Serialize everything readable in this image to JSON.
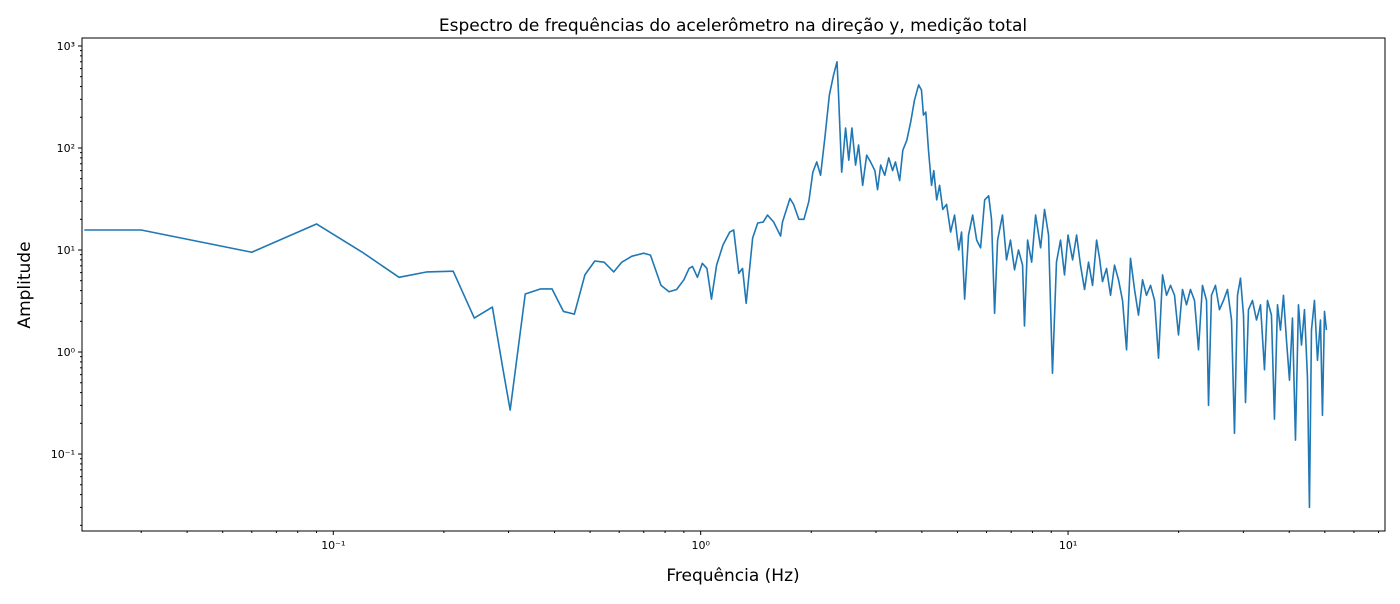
{
  "chart_data": {
    "type": "line",
    "title": "Espectro de frequências do acelerômetro na direção y, medição total",
    "xlabel": "Frequência (Hz)",
    "ylabel": "Amplitude",
    "xscale": "log",
    "yscale": "log",
    "xlim": [
      0.0207,
      72.9
    ],
    "ylim": [
      0.0176,
      1197
    ],
    "xticks": [
      {
        "value": 0.1,
        "label": "10⁻¹"
      },
      {
        "value": 1,
        "label": "10⁰"
      },
      {
        "value": 10,
        "label": "10¹"
      }
    ],
    "yticks": [
      {
        "value": 0.1,
        "label": "10⁻¹"
      },
      {
        "value": 1,
        "label": "10⁰"
      },
      {
        "value": 10,
        "label": "10¹"
      },
      {
        "value": 100,
        "label": "10²"
      },
      {
        "value": 1000,
        "label": "10³"
      }
    ],
    "xminorticks": [
      0.03,
      0.04,
      0.05,
      0.06,
      0.07,
      0.08,
      0.09,
      0.2,
      0.3,
      0.4,
      0.5,
      0.6,
      0.7,
      0.8,
      0.9,
      2,
      3,
      4,
      5,
      6,
      7,
      8,
      9,
      20,
      30,
      40,
      50,
      60,
      70
    ],
    "yminorticks": [
      0.02,
      0.03,
      0.04,
      0.05,
      0.06,
      0.07,
      0.08,
      0.09,
      0.2,
      0.3,
      0.4,
      0.5,
      0.6,
      0.7,
      0.8,
      0.9,
      2,
      3,
      4,
      5,
      6,
      7,
      8,
      9,
      20,
      30,
      40,
      50,
      60,
      70,
      80,
      90,
      200,
      300,
      400,
      500,
      600,
      700,
      800,
      900
    ],
    "grid": false,
    "series": [
      {
        "name": "Amplitude",
        "color": "#1f77b4",
        "x": [
          0.021,
          0.03,
          0.06,
          0.09,
          0.12,
          0.151,
          0.18,
          0.212,
          0.242,
          0.271,
          0.29,
          0.303,
          0.333,
          0.366,
          0.394,
          0.423,
          0.453,
          0.484,
          0.515,
          0.546,
          0.58,
          0.61,
          0.65,
          0.7,
          0.73,
          0.78,
          0.82,
          0.86,
          0.9,
          0.93,
          0.95,
          0.98,
          1.01,
          1.04,
          1.07,
          1.105,
          1.15,
          1.2,
          1.23,
          1.27,
          1.3,
          1.33,
          1.385,
          1.43,
          1.48,
          1.52,
          1.58,
          1.65,
          1.67,
          1.75,
          1.79,
          1.85,
          1.91,
          1.97,
          2.02,
          2.07,
          2.12,
          2.18,
          2.24,
          2.3,
          2.35,
          2.37,
          2.42,
          2.48,
          2.53,
          2.58,
          2.64,
          2.69,
          2.76,
          2.83,
          2.9,
          2.98,
          3.03,
          3.09,
          3.17,
          3.25,
          3.33,
          3.39,
          3.48,
          3.55,
          3.64,
          3.73,
          3.82,
          3.92,
          3.99,
          4.04,
          4.1,
          4.17,
          4.25,
          4.31,
          4.39,
          4.47,
          4.56,
          4.67,
          4.79,
          4.91,
          5.04,
          5.13,
          5.23,
          5.36,
          5.5,
          5.64,
          5.78,
          5.93,
          6.08,
          6.19,
          6.31,
          6.43,
          6.63,
          6.8,
          6.97,
          7.15,
          7.33,
          7.52,
          7.61,
          7.76,
          7.96,
          8.16,
          8.42,
          8.63,
          8.85,
          9.07,
          9.3,
          9.54,
          9.78,
          10.0,
          10.29,
          10.55,
          10.81,
          11.09,
          11.37,
          11.66,
          11.96,
          12.18,
          12.41,
          12.73,
          13.05,
          13.38,
          13.72,
          14.07,
          14.43,
          14.79,
          15.17,
          15.55,
          15.95,
          16.35,
          16.77,
          17.2,
          17.63,
          18.08,
          18.54,
          19.01,
          19.49,
          19.98,
          20.49,
          21.01,
          21.54,
          22.09,
          22.65,
          23.22,
          23.82,
          24.12,
          24.57,
          25.19,
          25.83,
          26.49,
          27.16,
          27.86,
          28.38,
          28.92,
          29.47,
          30.03,
          30.41,
          30.98,
          31.77,
          32.58,
          33.41,
          34.25,
          34.9,
          35.78,
          36.46,
          37.16,
          37.86,
          38.58,
          39.31,
          40.06,
          40.82,
          41.59,
          42.38,
          43.19,
          44.01,
          44.84,
          45.4,
          45.98,
          46.85,
          47.74,
          48.65,
          49.26,
          49.89,
          50.5
        ],
        "values": [
          15.7,
          15.7,
          9.5,
          18,
          9.5,
          5.4,
          6.1,
          6.2,
          2.15,
          2.76,
          0.66,
          0.27,
          3.7,
          4.15,
          4.15,
          2.5,
          2.35,
          5.7,
          7.8,
          7.6,
          6.1,
          7.6,
          8.7,
          9.3,
          8.9,
          4.5,
          3.9,
          4.1,
          5.1,
          6.6,
          6.9,
          5.4,
          7.4,
          6.6,
          3.3,
          7.1,
          11.2,
          15,
          15.7,
          5.9,
          6.6,
          3.0,
          13.1,
          18.4,
          18.8,
          22,
          18.8,
          13.7,
          18.8,
          32,
          28,
          20,
          20,
          30,
          58,
          73,
          54,
          130,
          330,
          520,
          700,
          370,
          58,
          157,
          76,
          157,
          68,
          107,
          43,
          85,
          73,
          60,
          39,
          68,
          54,
          80,
          60,
          73,
          48,
          95,
          119,
          180,
          295,
          415,
          370,
          210,
          225,
          95,
          43,
          60,
          31,
          43,
          25,
          28,
          15,
          22,
          10,
          15,
          3.3,
          14,
          22,
          12.5,
          10.5,
          31,
          34,
          20,
          2.4,
          12.5,
          22,
          8,
          12.5,
          6.4,
          10,
          7.1,
          1.8,
          12.5,
          7.6,
          22,
          10.5,
          25,
          14,
          0.62,
          7.6,
          12.5,
          5.7,
          14,
          8,
          14,
          7.1,
          4.1,
          7.6,
          4.5,
          12.5,
          8.3,
          4.9,
          6.6,
          3.6,
          7.1,
          5.1,
          3.2,
          1.05,
          8.3,
          4.1,
          2.3,
          5.1,
          3.6,
          4.5,
          3.2,
          0.87,
          5.7,
          3.6,
          4.5,
          3.6,
          1.47,
          4.1,
          2.9,
          4.1,
          3.2,
          1.05,
          4.5,
          3.2,
          0.3,
          3.6,
          4.5,
          2.6,
          3.2,
          4.1,
          2.06,
          0.16,
          3.6,
          5.3,
          2.3,
          0.32,
          2.6,
          3.2,
          2.06,
          2.9,
          0.67,
          3.2,
          2.3,
          0.22,
          2.9,
          1.64,
          3.6,
          1.31,
          0.53,
          2.15,
          0.137,
          2.9,
          1.17,
          2.6,
          0.56,
          0.03,
          1.64,
          3.2,
          0.83,
          2.06,
          0.24,
          2.5,
          1.64
        ]
      }
    ]
  }
}
